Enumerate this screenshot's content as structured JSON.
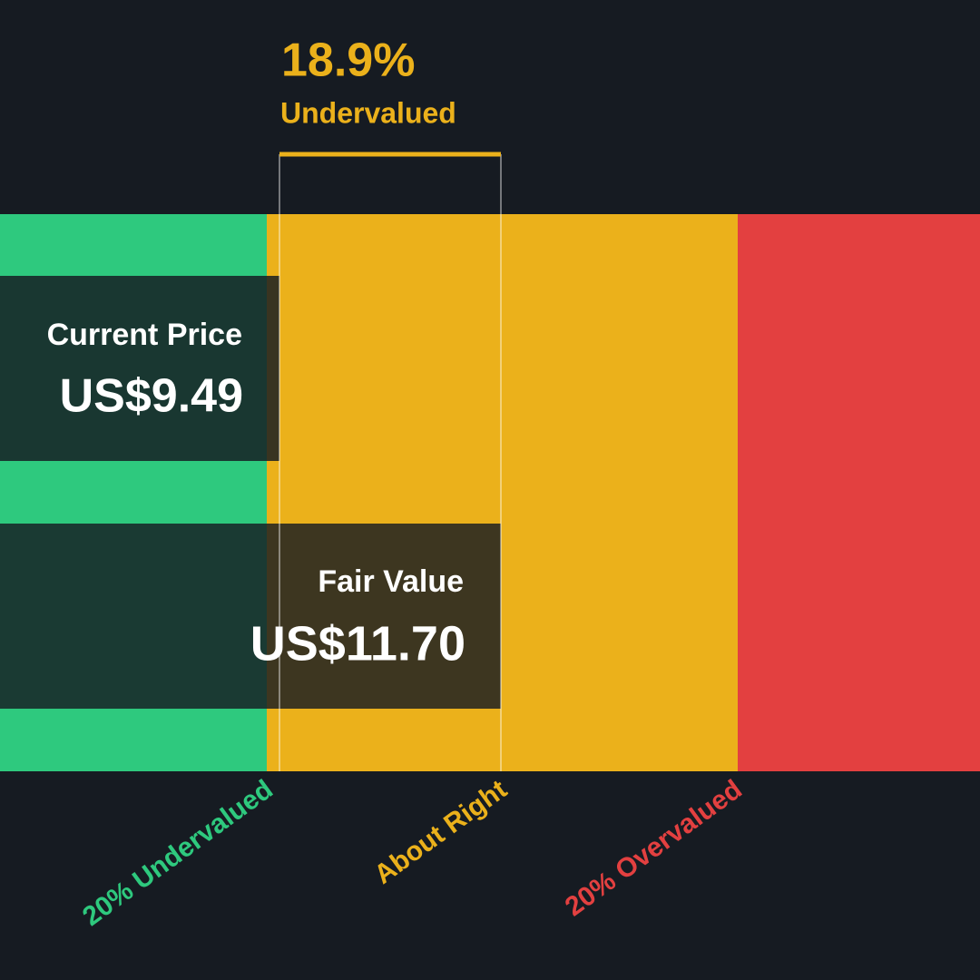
{
  "discount": {
    "value": "18.9%",
    "label": "Undervalued"
  },
  "current_price": {
    "label": "Current Price",
    "value": "US$9.49"
  },
  "fair_value": {
    "label": "Fair Value",
    "value": "US$11.70"
  },
  "zones": [
    "20% Undervalued",
    "About Right",
    "20% Overvalued"
  ]
}
